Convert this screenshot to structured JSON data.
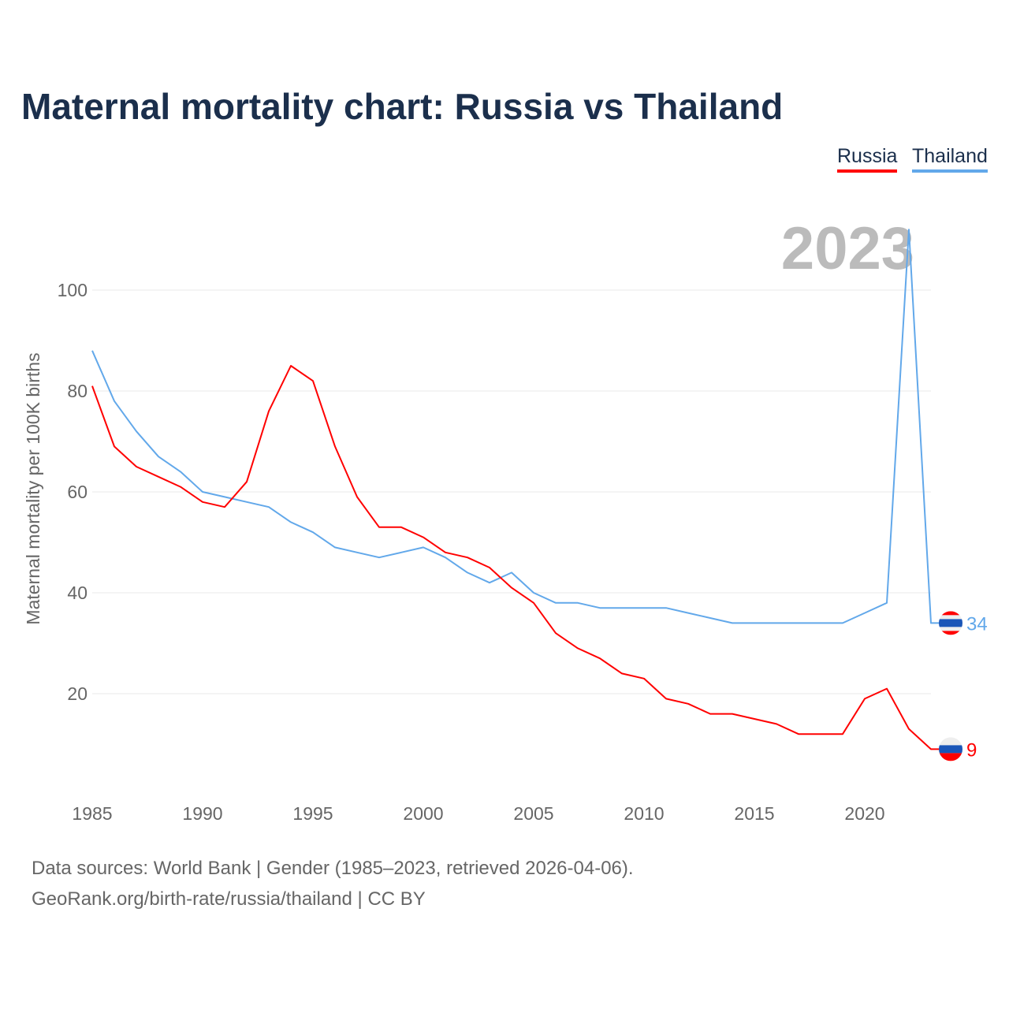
{
  "chart_data": {
    "type": "line",
    "title": "Maternal mortality chart: Russia vs Thailand",
    "ylabel": "Maternal mortality per 100K births",
    "xlabel": "",
    "year_label": "2023",
    "xlim": [
      1985,
      2023
    ],
    "ylim": [
      0,
      120
    ],
    "x_ticks": [
      1985,
      1990,
      1995,
      2000,
      2005,
      2010,
      2015,
      2020
    ],
    "y_ticks": [
      20,
      40,
      60,
      80,
      100
    ],
    "grid": true,
    "legend_position": "top-right",
    "x": [
      1985,
      1986,
      1987,
      1988,
      1989,
      1990,
      1991,
      1992,
      1993,
      1994,
      1995,
      1996,
      1997,
      1998,
      1999,
      2000,
      2001,
      2002,
      2003,
      2004,
      2005,
      2006,
      2007,
      2008,
      2009,
      2010,
      2011,
      2012,
      2013,
      2014,
      2015,
      2016,
      2017,
      2018,
      2019,
      2020,
      2021,
      2022,
      2023
    ],
    "series": [
      {
        "name": "Russia",
        "color": "#ff0000",
        "end_label": "9",
        "values": [
          81,
          69,
          65,
          63,
          61,
          58,
          57,
          62,
          76,
          85,
          82,
          69,
          59,
          53,
          53,
          51,
          48,
          47,
          45,
          41,
          38,
          32,
          29,
          27,
          24,
          23,
          19,
          18,
          16,
          16,
          15,
          14,
          12,
          12,
          12,
          19,
          21,
          13,
          9
        ]
      },
      {
        "name": "Thailand",
        "color": "#62a8ea",
        "end_label": "34",
        "values": [
          88,
          78,
          72,
          67,
          64,
          60,
          59,
          58,
          57,
          54,
          52,
          49,
          48,
          47,
          48,
          49,
          47,
          44,
          42,
          44,
          40,
          38,
          38,
          37,
          37,
          37,
          37,
          36,
          35,
          34,
          34,
          34,
          34,
          34,
          34,
          36,
          38,
          112,
          34
        ]
      }
    ]
  },
  "footer": {
    "line1": "Data sources: World Bank | Gender (1985–2023, retrieved 2026-04-06).",
    "line2": "GeoRank.org/birth-rate/russia/thailand | CC BY"
  }
}
